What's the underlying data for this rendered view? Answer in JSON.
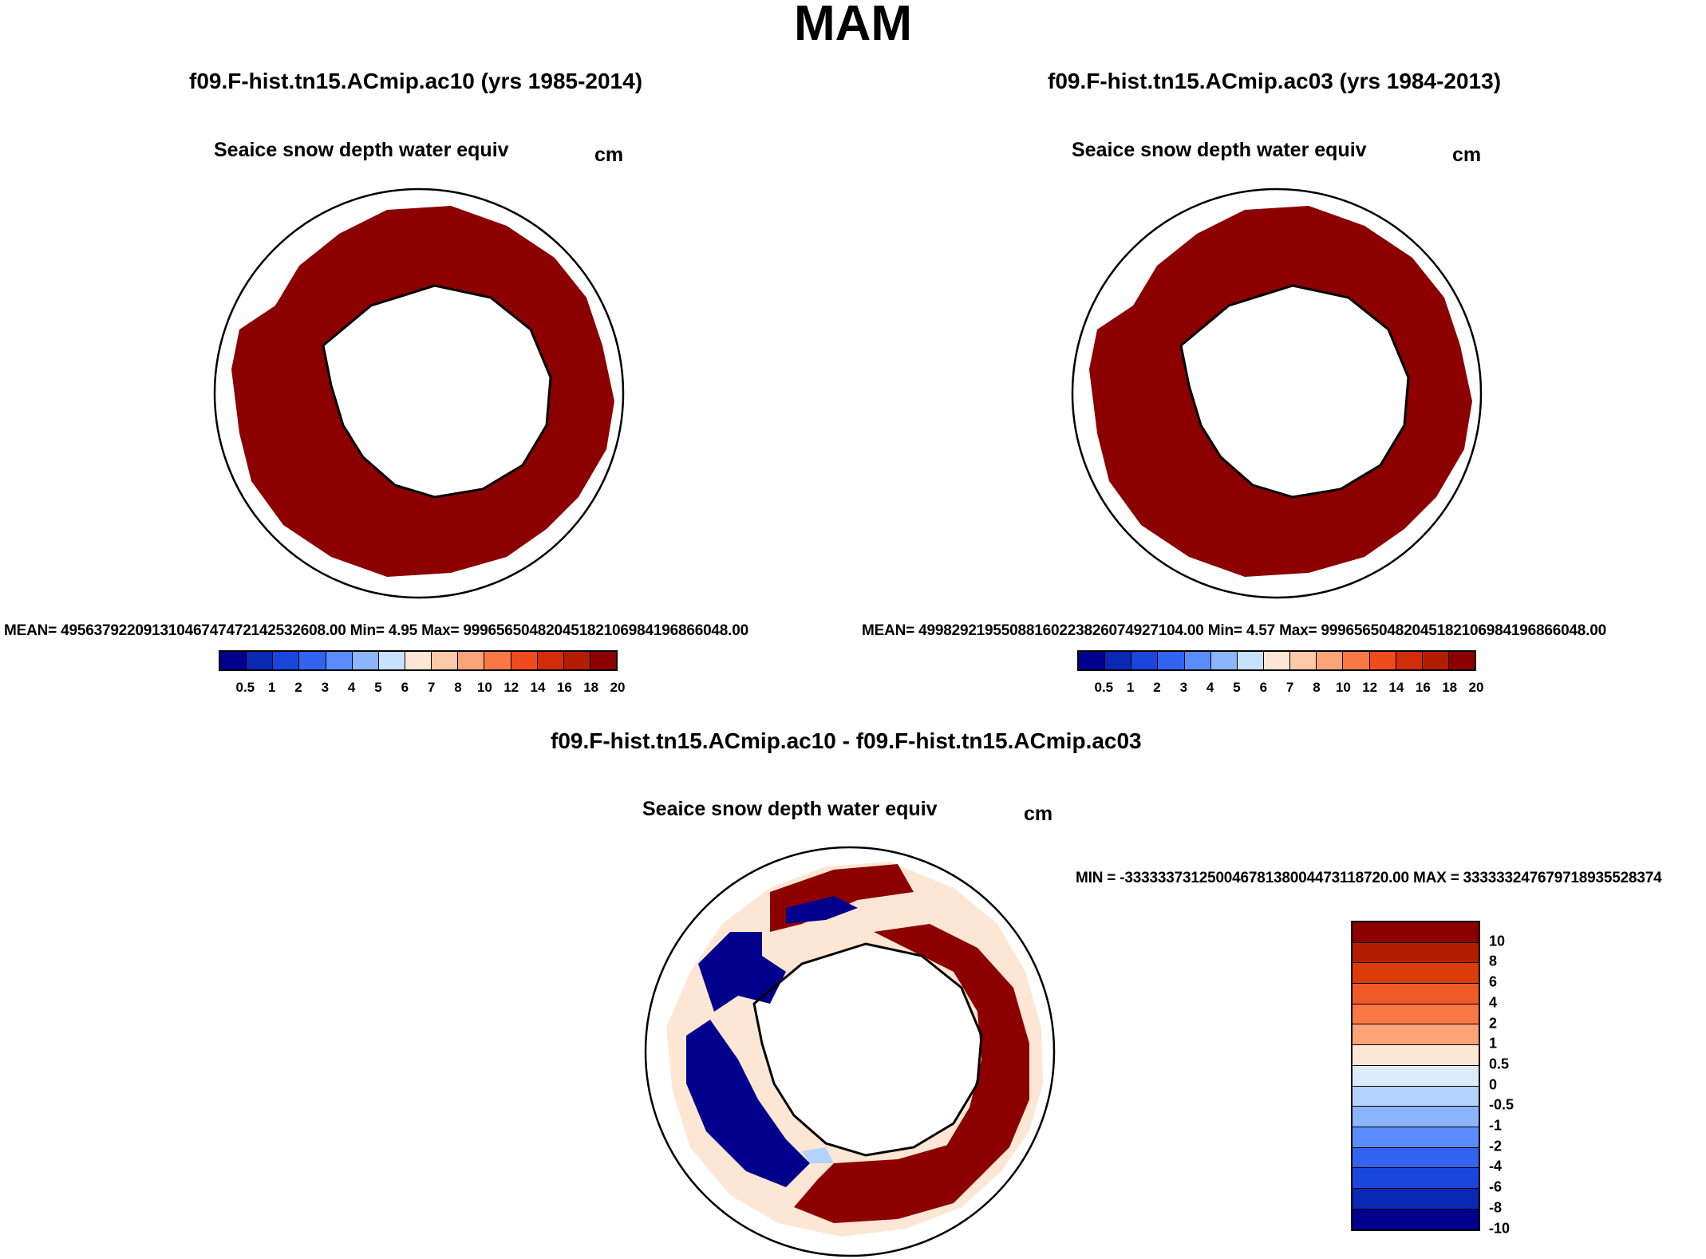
{
  "figure_title": "MAM",
  "panels": [
    {
      "case_title": "f09.F-hist.tn15.ACmip.ac10 (yrs 1985-2014)",
      "variable": "Seaice snow depth water equiv",
      "units": "cm",
      "stats": "MEAN= 49563792209131046747472142532608.00  Min=   4.95  Max= 99965650482045182106984196866048.00"
    },
    {
      "case_title": "f09.F-hist.tn15.ACmip.ac03 (yrs 1984-2013)",
      "variable": "Seaice snow depth water equiv",
      "units": "cm",
      "stats": "MEAN= 49982921955088160223826074927104.00  Min=   4.57  Max= 99965650482045182106984196866048.00"
    }
  ],
  "diff_panel": {
    "case_title": "f09.F-hist.tn15.ACmip.ac10 - f09.F-hist.tn15.ACmip.ac03",
    "variable": "Seaice snow depth water equiv",
    "units": "cm",
    "stats": "MIN = -33333373125004678138004473118720.00 MAX = 333333247679718935528374"
  },
  "colorbar": {
    "colors": [
      "#00008c",
      "#0a28b4",
      "#1a46dc",
      "#3264f0",
      "#5a8cff",
      "#8cb4ff",
      "#c8e1ff",
      "#fde6d4",
      "#fcc8aa",
      "#fca37a",
      "#fa7846",
      "#f04b1e",
      "#d22d0a",
      "#b41e00",
      "#8c0000"
    ],
    "labels": [
      "0.5",
      "1",
      "2",
      "3",
      "4",
      "5",
      "6",
      "7",
      "8",
      "10",
      "12",
      "14",
      "16",
      "18",
      "20"
    ]
  },
  "diff_colorbar": {
    "colors": [
      "#8c0000",
      "#b41e00",
      "#dc3c0a",
      "#f05a28",
      "#fa7846",
      "#fca37a",
      "#fde6d4",
      "#dcebfa",
      "#b4d2ff",
      "#8cb4ff",
      "#5a8cff",
      "#3264f0",
      "#1a46dc",
      "#0a28b4",
      "#00008c"
    ],
    "labels": [
      "10",
      "8",
      "6",
      "4",
      "2",
      "1",
      "0.5",
      "0",
      "-0.5",
      "-1",
      "-2",
      "-4",
      "-6",
      "-8",
      "-10"
    ]
  }
}
